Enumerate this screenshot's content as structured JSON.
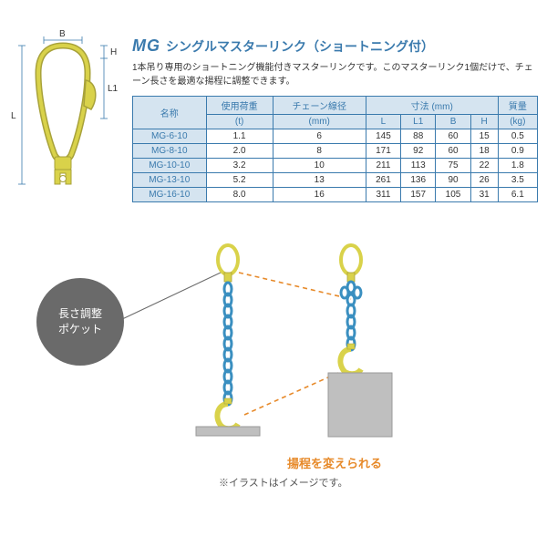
{
  "title": {
    "code": "MG",
    "name": "シングルマスターリンク（ショートニング付）"
  },
  "description": "1本吊り専用のショートニング機能付きマスターリンクです。このマスターリンク1個だけで、チェーン長さを最適な揚程に調整できます。",
  "table": {
    "head1": {
      "name": "名称",
      "load": "使用荷重",
      "chain": "チェーン線径"
    },
    "units": {
      "load": "(t)",
      "chain": "(mm)",
      "dim": "寸法 (mm)",
      "mass": "質量",
      "massu": "(kg)",
      "L": "L",
      "L1": "L1",
      "B": "B",
      "H": "H"
    },
    "rows": [
      {
        "name": "MG-6-10",
        "load": "1.1",
        "chain": "6",
        "L": "145",
        "L1": "88",
        "B": "60",
        "H": "15",
        "mass": "0.5"
      },
      {
        "name": "MG-8-10",
        "load": "2.0",
        "chain": "8",
        "L": "171",
        "L1": "92",
        "B": "60",
        "H": "18",
        "mass": "0.9"
      },
      {
        "name": "MG-10-10",
        "load": "3.2",
        "chain": "10",
        "L": "211",
        "L1": "113",
        "B": "75",
        "H": "22",
        "mass": "1.8"
      },
      {
        "name": "MG-13-10",
        "load": "5.2",
        "chain": "13",
        "L": "261",
        "L1": "136",
        "B": "90",
        "H": "26",
        "mass": "3.5"
      },
      {
        "name": "MG-16-10",
        "load": "8.0",
        "chain": "16",
        "L": "311",
        "L1": "157",
        "B": "105",
        "H": "31",
        "mass": "6.1"
      }
    ]
  },
  "callout": "長さ調整\nポケット",
  "caption_change": "揚程を変えられる",
  "caption_note": "※イラストはイメージです。",
  "dim_labels": {
    "B": "B",
    "H": "H",
    "L": "L",
    "L1": "L1"
  },
  "colors": {
    "accent": "#3a7aad",
    "head_bg": "#d5e4f0",
    "link": "#d9d24a",
    "chain": "#3a8fc0",
    "orange": "#e78a2a",
    "gray": "#6a6a6a",
    "arrow": "#3a7aad",
    "load": "#bfbfbf"
  }
}
